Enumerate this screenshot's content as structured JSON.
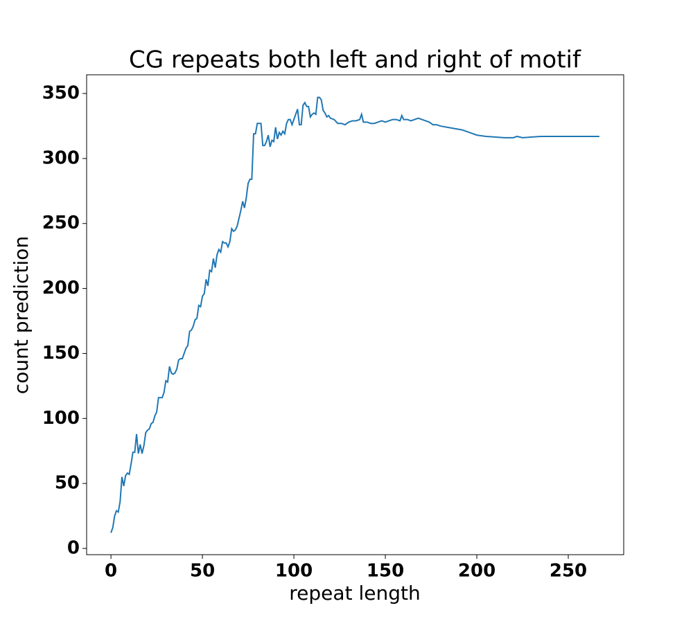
{
  "chart_data": {
    "type": "line",
    "title": "CG repeats both left and right of motif",
    "xlabel": "repeat length",
    "ylabel": "count prediction",
    "x": [
      0,
      1,
      2,
      3,
      4,
      5,
      6,
      7,
      8,
      9,
      10,
      11,
      12,
      13,
      14,
      15,
      16,
      17,
      18,
      19,
      20,
      21,
      22,
      23,
      24,
      25,
      26,
      27,
      28,
      29,
      30,
      31,
      32,
      33,
      34,
      35,
      36,
      37,
      38,
      39,
      40,
      41,
      42,
      43,
      44,
      45,
      46,
      47,
      48,
      49,
      50,
      51,
      52,
      53,
      54,
      55,
      56,
      57,
      58,
      59,
      60,
      61,
      62,
      63,
      64,
      65,
      66,
      67,
      68,
      69,
      70,
      71,
      72,
      73,
      74,
      75,
      76,
      77,
      78,
      79,
      80,
      81,
      82,
      83,
      84,
      85,
      86,
      87,
      88,
      89,
      90,
      91,
      92,
      93,
      94,
      95,
      96,
      97,
      98,
      99,
      100,
      101,
      102,
      103,
      104,
      105,
      106,
      107,
      108,
      109,
      110,
      111,
      112,
      113,
      114,
      115,
      116,
      117,
      118,
      119,
      120,
      122,
      124,
      126,
      128,
      130,
      132,
      134,
      136,
      137,
      138,
      140,
      142,
      144,
      146,
      148,
      150,
      152,
      154,
      156,
      158,
      159,
      160,
      162,
      164,
      166,
      168,
      170,
      172,
      174,
      176,
      178,
      180,
      184,
      188,
      192,
      196,
      200,
      205,
      210,
      215,
      220,
      222,
      225,
      230,
      235,
      240,
      250,
      260,
      267
    ],
    "series": [
      {
        "name": "count prediction",
        "color": "#1f77b4",
        "values": [
          12,
          16,
          25,
          29,
          28,
          36,
          55,
          48,
          56,
          58,
          57,
          65,
          74,
          74,
          88,
          73,
          80,
          73,
          79,
          89,
          91,
          92,
          96,
          97,
          102,
          105,
          116,
          116,
          116,
          120,
          129,
          128,
          140,
          135,
          134,
          135,
          138,
          145,
          146,
          146,
          150,
          154,
          156,
          167,
          168,
          171,
          176,
          177,
          187,
          186,
          194,
          196,
          207,
          202,
          214,
          213,
          223,
          216,
          226,
          230,
          228,
          236,
          235,
          235,
          232,
          236,
          246,
          244,
          245,
          248,
          254,
          260,
          267,
          262,
          270,
          281,
          284,
          284,
          319,
          319,
          327,
          327,
          327,
          310,
          310,
          313,
          318,
          309,
          314,
          313,
          324,
          315,
          320,
          318,
          321,
          319,
          327,
          330,
          330,
          326,
          330,
          334,
          338,
          326,
          326,
          341,
          343,
          340,
          340,
          332,
          334,
          335,
          334,
          347,
          347,
          345,
          337,
          335,
          332,
          333,
          331,
          330,
          327,
          327,
          326,
          328,
          329,
          329,
          330,
          334,
          328,
          328,
          327,
          327,
          328,
          329,
          328,
          329,
          330,
          330,
          329,
          333,
          330,
          330,
          329,
          330,
          331,
          330,
          329,
          328,
          326,
          326,
          325,
          324,
          323,
          322,
          320,
          318,
          317,
          316.5,
          316,
          316,
          317,
          316,
          316.5,
          317,
          317,
          317,
          317,
          317
        ]
      }
    ],
    "xlim": [
      -13.3,
      280.3
    ],
    "ylim": [
      -4.8,
      364.4
    ],
    "xticks": [
      0,
      50,
      100,
      150,
      200,
      250
    ],
    "yticks": [
      0,
      50,
      100,
      150,
      200,
      250,
      300,
      350
    ]
  }
}
